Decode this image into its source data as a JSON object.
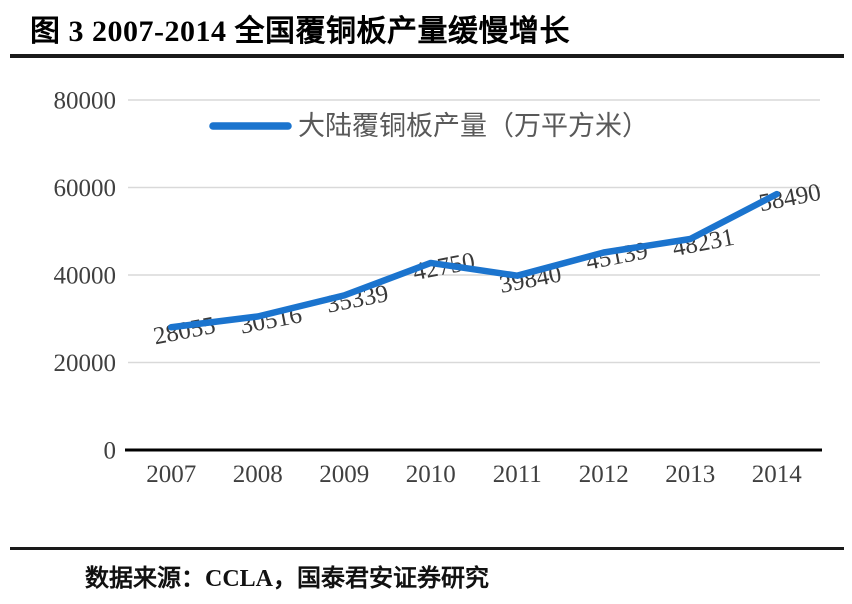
{
  "header": {
    "title": "图 3 2007-2014 全国覆铜板产量缓慢增长"
  },
  "footer": {
    "source": "数据来源：CCLA，国泰君安证券研究"
  },
  "colors": {
    "line": "#1B74CE",
    "grid": "#D9D9D9",
    "axis": "#000000",
    "tick_text": "#404040",
    "data_label_text": "#3A3A3A",
    "legend_text": "#595959",
    "rule": "#1A1A1A"
  },
  "chart_data": {
    "type": "line",
    "title": "",
    "xlabel": "",
    "ylabel": "",
    "categories": [
      "2007",
      "2008",
      "2009",
      "2010",
      "2011",
      "2012",
      "2013",
      "2014"
    ],
    "series": [
      {
        "name": "大陆覆铜板产量（万平方米）",
        "color": "#1B74CE",
        "values": [
          28055,
          30516,
          35339,
          42750,
          39840,
          45139,
          48231,
          58490
        ]
      }
    ],
    "ylim": [
      0,
      80000
    ],
    "yticks": [
      0,
      20000,
      40000,
      60000,
      80000
    ],
    "grid": "horizontal",
    "legend_position": "top-center",
    "data_labels": true,
    "data_label_rotation_deg": -11
  }
}
